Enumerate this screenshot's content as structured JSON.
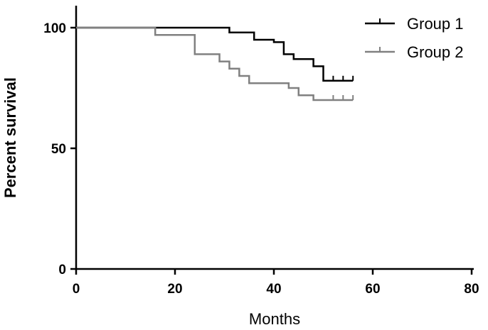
{
  "chart_data": {
    "type": "line",
    "step": true,
    "title": "",
    "xlabel": "Months",
    "ylabel": "Percent survival",
    "xlim": [
      0,
      80
    ],
    "ylim": [
      0,
      110
    ],
    "xticks": [
      "0",
      "20",
      "40",
      "60",
      "80"
    ],
    "yticks": [
      "0",
      "50",
      "100"
    ],
    "grid": false,
    "legend_position": "top-right",
    "series": [
      {
        "name": "Group 1",
        "color": "#000000",
        "x": [
          0,
          28,
          31,
          32,
          36,
          40,
          42,
          44,
          48,
          50,
          56
        ],
        "y": [
          100,
          100,
          98,
          98,
          95,
          94,
          89,
          87,
          84,
          78,
          78
        ],
        "censored_x": [
          52,
          54,
          56
        ]
      },
      {
        "name": "Group 2",
        "color": "#808080",
        "x": [
          0,
          14,
          16,
          20,
          24,
          27,
          29,
          31,
          33,
          35,
          40,
          43,
          45,
          48,
          56
        ],
        "y": [
          100,
          100,
          97,
          97,
          89,
          89,
          86,
          83,
          80,
          77,
          77,
          75,
          72,
          70,
          70
        ],
        "censored_x": [
          52,
          54,
          56
        ]
      }
    ]
  }
}
